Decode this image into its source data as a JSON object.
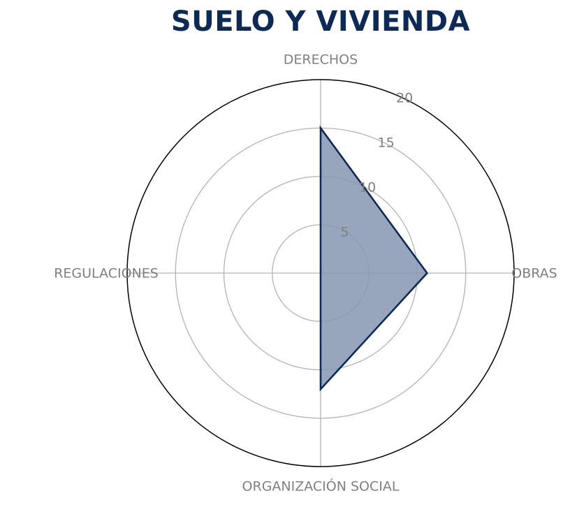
{
  "chart_data": {
    "type": "radar",
    "title": "SUELO Y VIVIENDA",
    "categories": [
      "DERECHOS",
      "OBRAS",
      "ORGANIZACIÓN SOCIAL",
      "REGULACIONES"
    ],
    "series": [
      {
        "values": [
          15,
          11,
          12,
          0
        ]
      }
    ],
    "rlim": [
      0,
      20
    ],
    "rticks": [
      5,
      10,
      15,
      20
    ],
    "grid": true,
    "colors": {
      "title": "#0d2a55",
      "series_line": "#0d2a55",
      "series_fill": "#8597b0",
      "label": "#808080",
      "grid": "#b3b3b3",
      "outer_ring": "#000000"
    }
  }
}
